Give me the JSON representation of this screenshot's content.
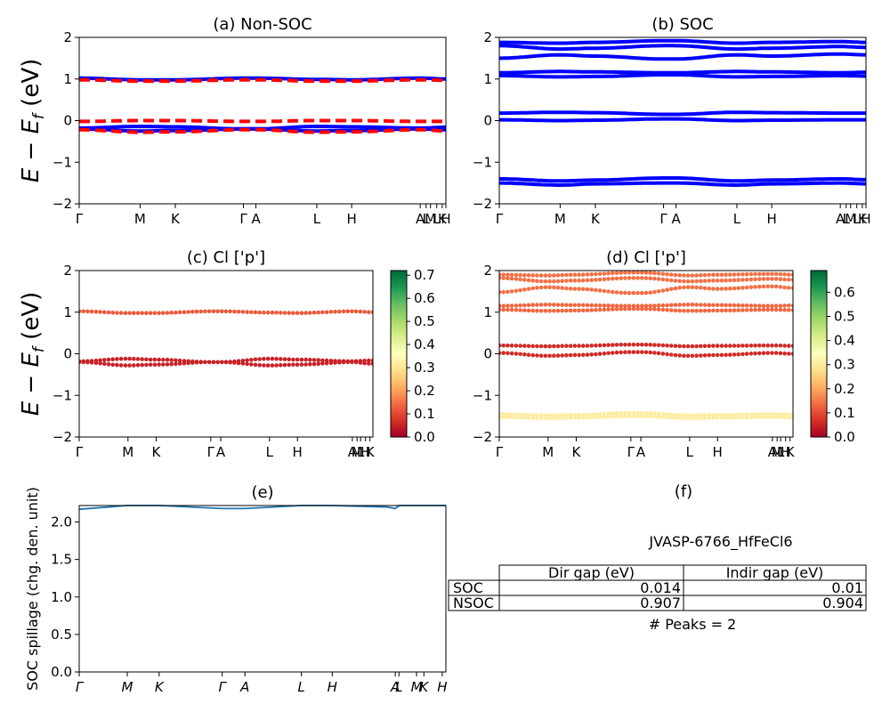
{
  "colors": {
    "nonsoc_line": "#0000ff",
    "nonsoc_dash": "#ff0000",
    "soc_line": "#0000ff",
    "spillage_line": "#1f77b4",
    "colormap": "RdYlGn"
  },
  "ylabel_main": "E − E_f (eV)",
  "chart_data": [
    {
      "id": "a",
      "type": "line",
      "title": "(a) Non-SOC",
      "ylabel": "E − E_f (eV)",
      "ylim": [
        -2,
        2
      ],
      "yticks": [
        "−2",
        "−1",
        "0",
        "1",
        "2"
      ],
      "kticks": [
        {
          "label": "Γ",
          "k": 0.0
        },
        {
          "label": "M",
          "k": 0.166
        },
        {
          "label": "K",
          "k": 0.262
        },
        {
          "label": "Γ",
          "k": 0.448
        },
        {
          "label": "A",
          "k": 0.482
        },
        {
          "label": "L",
          "k": 0.648
        },
        {
          "label": "H",
          "k": 0.743
        },
        {
          "label": "A",
          "k": 0.93
        },
        {
          "label": "L",
          "k": 0.946
        },
        {
          "label": "M",
          "k": 0.958
        },
        {
          "label": "L",
          "k": 0.975
        },
        {
          "label": "K",
          "k": 0.99
        },
        {
          "label": "H",
          "k": 1.0
        }
      ],
      "series": [
        {
          "style": "solid",
          "k": [
            0,
            0.166,
            0.262,
            0.448,
            0.482,
            0.648,
            0.743,
            0.93,
            1.0
          ],
          "values": [
            1.02,
            0.98,
            0.98,
            1.02,
            1.02,
            0.99,
            0.98,
            1.02,
            1.0
          ]
        },
        {
          "style": "solid",
          "k": [
            0,
            0.166,
            0.262,
            0.448,
            0.482,
            0.648,
            0.743,
            0.93,
            1.0
          ],
          "values": [
            -0.18,
            -0.14,
            -0.15,
            -0.2,
            -0.2,
            -0.14,
            -0.15,
            -0.18,
            -0.16
          ]
        },
        {
          "style": "solid",
          "k": [
            0,
            0.166,
            0.262,
            0.448,
            0.482,
            0.648,
            0.743,
            0.93,
            1.0
          ],
          "values": [
            -0.2,
            -0.25,
            -0.24,
            -0.2,
            -0.2,
            -0.25,
            -0.24,
            -0.2,
            -0.22
          ]
        },
        {
          "style": "dashed",
          "k": [
            0,
            0.166,
            0.262,
            0.448,
            0.482,
            0.648,
            0.743,
            0.93,
            1.0
          ],
          "values": [
            0.98,
            0.95,
            0.95,
            0.98,
            0.98,
            0.95,
            0.95,
            0.98,
            0.97
          ]
        },
        {
          "style": "dashed",
          "k": [
            0,
            0.166,
            0.262,
            0.448,
            0.482,
            0.648,
            0.743,
            0.93,
            1.0
          ],
          "values": [
            -0.02,
            0.0,
            0.0,
            -0.02,
            -0.02,
            0.0,
            0.0,
            -0.02,
            -0.02
          ]
        },
        {
          "style": "dashed",
          "k": [
            0,
            0.166,
            0.262,
            0.448,
            0.482,
            0.648,
            0.743,
            0.93,
            1.0
          ],
          "values": [
            -0.22,
            -0.28,
            -0.27,
            -0.22,
            -0.22,
            -0.28,
            -0.27,
            -0.22,
            -0.25
          ]
        }
      ]
    },
    {
      "id": "b",
      "type": "line",
      "title": "(b) SOC",
      "ylim": [
        -2,
        2
      ],
      "yticks": [
        "−2",
        "−1",
        "0",
        "1",
        "2"
      ],
      "kticks": [
        {
          "label": "Γ",
          "k": 0.0
        },
        {
          "label": "M",
          "k": 0.166
        },
        {
          "label": "K",
          "k": 0.262
        },
        {
          "label": "Γ",
          "k": 0.448
        },
        {
          "label": "A",
          "k": 0.482
        },
        {
          "label": "L",
          "k": 0.648
        },
        {
          "label": "H",
          "k": 0.743
        },
        {
          "label": "A",
          "k": 0.93
        },
        {
          "label": "L",
          "k": 0.946
        },
        {
          "label": "M",
          "k": 0.958
        },
        {
          "label": "L",
          "k": 0.975
        },
        {
          "label": "K",
          "k": 0.99
        },
        {
          "label": "H",
          "k": 1.0
        }
      ],
      "series": [
        {
          "k": [
            0,
            0.166,
            0.262,
            0.448,
            0.482,
            0.648,
            0.743,
            0.93,
            1.0
          ],
          "values": [
            1.88,
            1.86,
            1.88,
            1.92,
            1.92,
            1.86,
            1.88,
            1.9,
            1.88
          ]
        },
        {
          "k": [
            0,
            0.166,
            0.262,
            0.448,
            0.482,
            0.648,
            0.743,
            0.93,
            1.0
          ],
          "values": [
            1.8,
            1.72,
            1.74,
            1.8,
            1.8,
            1.72,
            1.74,
            1.78,
            1.76
          ]
        },
        {
          "k": [
            0,
            0.166,
            0.262,
            0.448,
            0.482,
            0.648,
            0.743,
            0.93,
            1.0
          ],
          "values": [
            1.5,
            1.58,
            1.55,
            1.48,
            1.48,
            1.58,
            1.55,
            1.6,
            1.58
          ]
        },
        {
          "k": [
            0,
            0.166,
            0.262,
            0.448,
            0.482,
            0.648,
            0.743,
            0.93,
            1.0
          ],
          "values": [
            1.15,
            1.18,
            1.17,
            1.15,
            1.15,
            1.18,
            1.17,
            1.15,
            1.16
          ]
        },
        {
          "k": [
            0,
            0.166,
            0.262,
            0.448,
            0.482,
            0.648,
            0.743,
            0.93,
            1.0
          ],
          "values": [
            1.08,
            1.05,
            1.06,
            1.1,
            1.1,
            1.05,
            1.06,
            1.08,
            1.07
          ]
        },
        {
          "k": [
            0,
            0.166,
            0.262,
            0.448,
            0.482,
            0.648,
            0.743,
            0.93,
            1.0
          ],
          "values": [
            0.18,
            0.2,
            0.19,
            0.15,
            0.15,
            0.2,
            0.19,
            0.18,
            0.18
          ]
        },
        {
          "k": [
            0,
            0.166,
            0.262,
            0.448,
            0.482,
            0.648,
            0.743,
            0.93,
            1.0
          ],
          "values": [
            0.02,
            0.0,
            0.01,
            0.04,
            0.04,
            0.0,
            0.01,
            0.02,
            0.02
          ]
        },
        {
          "k": [
            0,
            0.166,
            0.262,
            0.448,
            0.482,
            0.648,
            0.743,
            0.93,
            1.0
          ],
          "values": [
            -1.4,
            -1.45,
            -1.43,
            -1.38,
            -1.38,
            -1.45,
            -1.43,
            -1.4,
            -1.42
          ]
        },
        {
          "k": [
            0,
            0.166,
            0.262,
            0.448,
            0.482,
            0.648,
            0.743,
            0.93,
            1.0
          ],
          "values": [
            -1.5,
            -1.55,
            -1.52,
            -1.5,
            -1.5,
            -1.55,
            -1.52,
            -1.5,
            -1.52
          ]
        }
      ]
    },
    {
      "id": "c",
      "type": "scatter",
      "title": "(c)  Cl ['p']",
      "ylabel": "E − E_f (eV)",
      "ylim": [
        -2,
        2
      ],
      "yticks": [
        "−2",
        "−1",
        "0",
        "1",
        "2"
      ],
      "colorbar": {
        "min": 0.0,
        "max": 0.72,
        "ticks": [
          "0.0",
          "0.1",
          "0.2",
          "0.3",
          "0.4",
          "0.5",
          "0.6",
          "0.7"
        ]
      },
      "kticks": [
        {
          "label": "Γ",
          "k": 0.0
        },
        {
          "label": "M",
          "k": 0.166
        },
        {
          "label": "K",
          "k": 0.262
        },
        {
          "label": "Γ",
          "k": 0.448
        },
        {
          "label": "A",
          "k": 0.482
        },
        {
          "label": "L",
          "k": 0.648
        },
        {
          "label": "H",
          "k": 0.743
        },
        {
          "label": "A",
          "k": 0.93
        },
        {
          "label": "M",
          "k": 0.946
        },
        {
          "label": "L",
          "k": 0.958
        },
        {
          "label": "H",
          "k": 0.975
        },
        {
          "label": "K",
          "k": 0.99
        }
      ],
      "bands": [
        {
          "k": [
            0,
            0.166,
            0.262,
            0.448,
            0.482,
            0.648,
            0.743,
            0.93,
            1.0
          ],
          "values": [
            1.02,
            0.98,
            0.98,
            1.02,
            1.02,
            0.99,
            0.98,
            1.02,
            1.0
          ],
          "weight": 0.12
        },
        {
          "k": [
            0,
            0.166,
            0.262,
            0.448,
            0.482,
            0.648,
            0.743,
            0.93,
            1.0
          ],
          "values": [
            -0.18,
            -0.12,
            -0.14,
            -0.2,
            -0.2,
            -0.12,
            -0.14,
            -0.18,
            -0.16
          ],
          "weight": 0.05
        },
        {
          "k": [
            0,
            0.166,
            0.262,
            0.448,
            0.482,
            0.648,
            0.743,
            0.93,
            1.0
          ],
          "values": [
            -0.2,
            -0.28,
            -0.26,
            -0.2,
            -0.2,
            -0.28,
            -0.26,
            -0.2,
            -0.24
          ],
          "weight": 0.05
        }
      ]
    },
    {
      "id": "d",
      "type": "scatter",
      "title": "(d) Cl ['p']",
      "ylim": [
        -2,
        2
      ],
      "yticks": [
        "−2",
        "−1",
        "0",
        "1",
        "2"
      ],
      "colorbar": {
        "min": 0.0,
        "max": 0.69,
        "ticks": [
          "0.0",
          "0.1",
          "0.2",
          "0.3",
          "0.4",
          "0.5",
          "0.6"
        ]
      },
      "kticks": [
        {
          "label": "Γ",
          "k": 0.0
        },
        {
          "label": "M",
          "k": 0.166
        },
        {
          "label": "K",
          "k": 0.262
        },
        {
          "label": "Γ",
          "k": 0.448
        },
        {
          "label": "A",
          "k": 0.482
        },
        {
          "label": "L",
          "k": 0.648
        },
        {
          "label": "H",
          "k": 0.743
        },
        {
          "label": "A",
          "k": 0.93
        },
        {
          "label": "M",
          "k": 0.946
        },
        {
          "label": "L",
          "k": 0.958
        },
        {
          "label": "H",
          "k": 0.975
        },
        {
          "label": "K",
          "k": 0.99
        }
      ],
      "bands": [
        {
          "k": [
            0,
            0.166,
            0.262,
            0.448,
            0.482,
            0.648,
            0.743,
            0.93,
            1.0
          ],
          "values": [
            1.9,
            1.88,
            1.9,
            1.95,
            1.95,
            1.88,
            1.9,
            1.92,
            1.9
          ],
          "weight": 0.14
        },
        {
          "k": [
            0,
            0.166,
            0.262,
            0.448,
            0.482,
            0.648,
            0.743,
            0.93,
            1.0
          ],
          "values": [
            1.82,
            1.74,
            1.76,
            1.82,
            1.82,
            1.74,
            1.76,
            1.8,
            1.78
          ],
          "weight": 0.14
        },
        {
          "k": [
            0,
            0.166,
            0.262,
            0.448,
            0.482,
            0.648,
            0.743,
            0.93,
            1.0
          ],
          "values": [
            1.48,
            1.6,
            1.56,
            1.46,
            1.46,
            1.6,
            1.56,
            1.62,
            1.58
          ],
          "weight": 0.14
        },
        {
          "k": [
            0,
            0.166,
            0.262,
            0.448,
            0.482,
            0.648,
            0.743,
            0.93,
            1.0
          ],
          "values": [
            1.15,
            1.18,
            1.17,
            1.15,
            1.15,
            1.18,
            1.17,
            1.15,
            1.16
          ],
          "weight": 0.13
        },
        {
          "k": [
            0,
            0.166,
            0.262,
            0.448,
            0.482,
            0.648,
            0.743,
            0.93,
            1.0
          ],
          "values": [
            1.06,
            1.03,
            1.04,
            1.08,
            1.08,
            1.03,
            1.04,
            1.06,
            1.05
          ],
          "weight": 0.13
        },
        {
          "k": [
            0,
            0.166,
            0.262,
            0.448,
            0.482,
            0.648,
            0.743,
            0.93,
            1.0
          ],
          "values": [
            0.2,
            0.18,
            0.19,
            0.22,
            0.22,
            0.18,
            0.19,
            0.2,
            0.19
          ],
          "weight": 0.06
        },
        {
          "k": [
            0,
            0.166,
            0.262,
            0.448,
            0.482,
            0.648,
            0.743,
            0.93,
            1.0
          ],
          "values": [
            0.02,
            -0.05,
            -0.03,
            0.04,
            0.04,
            -0.05,
            -0.03,
            0.02,
            0.0
          ],
          "weight": 0.06
        },
        {
          "k": [
            0,
            0.166,
            0.262,
            0.448,
            0.482,
            0.648,
            0.743,
            0.93,
            1.0
          ],
          "values": [
            -1.45,
            -1.48,
            -1.47,
            -1.42,
            -1.42,
            -1.48,
            -1.47,
            -1.45,
            -1.46
          ],
          "weight": 0.3
        },
        {
          "k": [
            0,
            0.166,
            0.262,
            0.448,
            0.482,
            0.648,
            0.743,
            0.93,
            1.0
          ],
          "values": [
            -1.52,
            -1.55,
            -1.54,
            -1.5,
            -1.5,
            -1.55,
            -1.54,
            -1.52,
            -1.53
          ],
          "weight": 0.3
        }
      ]
    },
    {
      "id": "e",
      "type": "line",
      "title": "(e)",
      "ylabel": "SOC spillage (chg. den. unit)",
      "ylim": [
        0,
        2.22
      ],
      "yticks": [
        "0.0",
        "0.5",
        "1.0",
        "1.5",
        "2.0"
      ],
      "ytick_values": [
        0.0,
        0.5,
        1.0,
        1.5,
        2.0
      ],
      "kticks": [
        {
          "label": "Γ",
          "k": 0.0
        },
        {
          "label": "M",
          "k": 0.131
        },
        {
          "label": "K",
          "k": 0.218
        },
        {
          "label": "Γ",
          "k": 0.39
        },
        {
          "label": "A",
          "k": 0.452
        },
        {
          "label": "L",
          "k": 0.606
        },
        {
          "label": "H",
          "k": 0.69
        },
        {
          "label": "A",
          "k": 0.862
        },
        {
          "label": "L",
          "k": 0.872
        },
        {
          "label": "M",
          "k": 0.92
        },
        {
          "label": "K",
          "k": 0.94
        },
        {
          "label": "H",
          "k": 0.99
        }
      ],
      "series": [
        {
          "k": [
            0,
            0.131,
            0.218,
            0.39,
            0.452,
            0.606,
            0.69,
            0.84,
            0.862,
            0.872,
            0.92,
            0.94,
            1.0
          ],
          "values": [
            2.17,
            2.22,
            2.22,
            2.18,
            2.18,
            2.22,
            2.22,
            2.2,
            2.18,
            2.22,
            2.22,
            2.22,
            2.22
          ]
        }
      ]
    }
  ],
  "table": {
    "title": "(f)",
    "name": "JVASP-6766_HfFeCl6",
    "headers": [
      "",
      "Dir gap (eV)",
      "Indir gap (eV)"
    ],
    "rows": [
      [
        "SOC",
        "0.014",
        "0.01"
      ],
      [
        "NSOC",
        "0.907",
        "0.904"
      ]
    ],
    "peaks": "# Peaks = 2"
  }
}
